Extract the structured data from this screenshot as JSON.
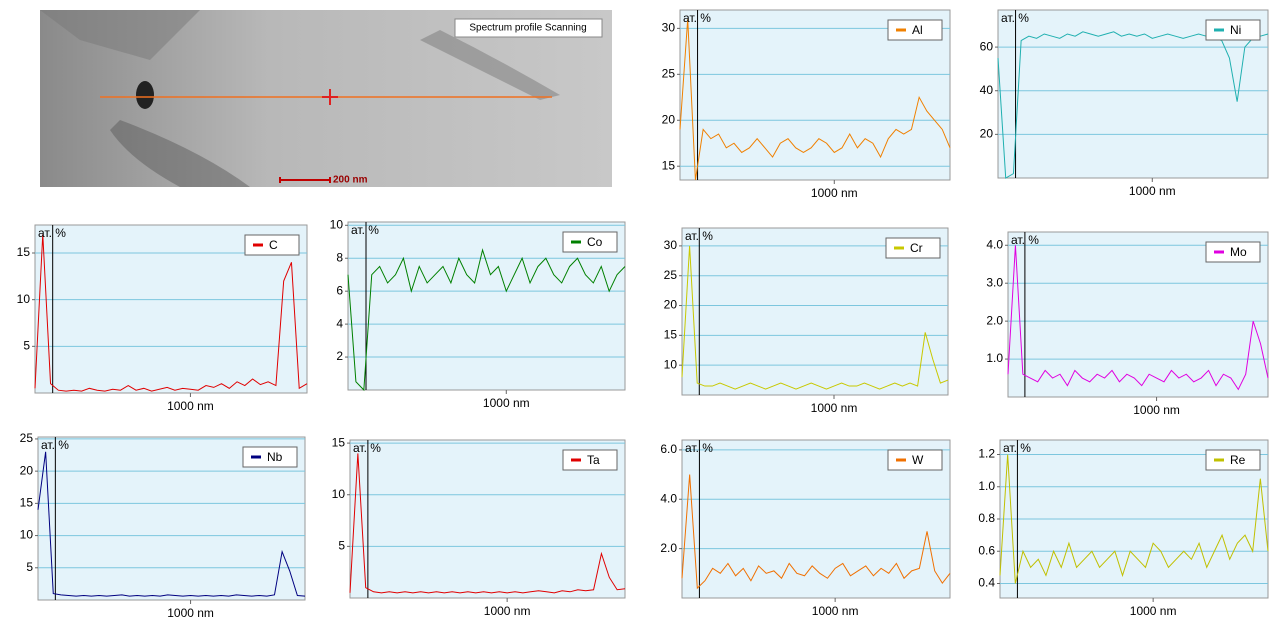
{
  "image": {
    "label": "Spectrum profile Scanning",
    "scale_bar": "200 nm"
  },
  "chart_data": [
    {
      "type": "line",
      "y_label": "ат. %",
      "x": [
        0,
        50,
        100,
        150,
        200,
        250,
        300,
        350,
        400,
        450,
        500,
        550,
        600,
        650,
        700,
        750,
        800,
        850,
        900,
        950,
        1000,
        1050,
        1100,
        1150,
        1200,
        1250,
        1300,
        1350,
        1400,
        1450,
        1500,
        1550,
        1600,
        1650,
        1700,
        1750
      ],
      "xlim": [
        0,
        1750
      ],
      "xticks": [
        {
          "value": 1000,
          "label": "1000 nm"
        }
      ],
      "ylim": [
        13.5,
        32
      ],
      "yticks": [
        15,
        20,
        25,
        30
      ],
      "grid": true,
      "series": [
        {
          "name": "Al",
          "color": "#f08000",
          "values": [
            19,
            31,
            13.5,
            19,
            18,
            18.5,
            17,
            17.5,
            16.5,
            17,
            18,
            17,
            16,
            17.5,
            18,
            17,
            16.5,
            17,
            18,
            17.5,
            16.5,
            17,
            18.5,
            17,
            18,
            17.5,
            16,
            18,
            19,
            18.5,
            19,
            22.5,
            21,
            20,
            19,
            17
          ]
        }
      ]
    },
    {
      "type": "line",
      "y_label": "ат. %",
      "x": [
        0,
        50,
        100,
        150,
        200,
        250,
        300,
        350,
        400,
        450,
        500,
        550,
        600,
        650,
        700,
        750,
        800,
        850,
        900,
        950,
        1000,
        1050,
        1100,
        1150,
        1200,
        1250,
        1300,
        1350,
        1400,
        1450,
        1500,
        1550,
        1600,
        1650,
        1700,
        1750
      ],
      "xlim": [
        0,
        1750
      ],
      "xticks": [
        {
          "value": 1000,
          "label": "1000 nm"
        }
      ],
      "ylim": [
        0,
        77
      ],
      "yticks": [
        20,
        40,
        60
      ],
      "grid": true,
      "series": [
        {
          "name": "Ni",
          "color": "#20b0b0",
          "values": [
            55,
            0,
            2,
            63,
            65,
            64,
            66,
            65,
            64,
            66,
            65,
            67,
            66,
            65,
            66,
            67,
            65,
            66,
            65,
            66,
            64,
            65,
            66,
            65,
            64,
            65,
            66,
            65,
            64,
            63,
            55,
            35,
            60,
            64,
            65,
            66
          ]
        }
      ]
    },
    {
      "type": "line",
      "y_label": "ат. %",
      "x": [
        0,
        50,
        100,
        150,
        200,
        250,
        300,
        350,
        400,
        450,
        500,
        550,
        600,
        650,
        700,
        750,
        800,
        850,
        900,
        950,
        1000,
        1050,
        1100,
        1150,
        1200,
        1250,
        1300,
        1350,
        1400,
        1450,
        1500,
        1550,
        1600,
        1650,
        1700,
        1750
      ],
      "xlim": [
        0,
        1750
      ],
      "xticks": [
        {
          "value": 1000,
          "label": "1000 nm"
        }
      ],
      "ylim": [
        0,
        18
      ],
      "yticks": [
        5,
        10,
        15
      ],
      "grid": true,
      "series": [
        {
          "name": "C",
          "color": "#e00000",
          "values": [
            0.5,
            17,
            1,
            0.3,
            0.2,
            0.3,
            0.2,
            0.5,
            0.3,
            0.2,
            0.4,
            0.3,
            0.8,
            0.3,
            0.5,
            0.2,
            0.4,
            0.6,
            0.3,
            0.5,
            0.4,
            0.3,
            0.8,
            0.6,
            1,
            0.5,
            1.2,
            0.8,
            1.5,
            0.9,
            1.2,
            0.8,
            12,
            14,
            0.5,
            1
          ]
        }
      ]
    },
    {
      "type": "line",
      "y_label": "ат. %",
      "x": [
        0,
        50,
        100,
        150,
        200,
        250,
        300,
        350,
        400,
        450,
        500,
        550,
        600,
        650,
        700,
        750,
        800,
        850,
        900,
        950,
        1000,
        1050,
        1100,
        1150,
        1200,
        1250,
        1300,
        1350,
        1400,
        1450,
        1500,
        1550,
        1600,
        1650,
        1700,
        1750
      ],
      "xlim": [
        0,
        1750
      ],
      "xticks": [
        {
          "value": 1000,
          "label": "1000 nm"
        }
      ],
      "ylim": [
        0,
        10.2
      ],
      "yticks": [
        2,
        4,
        6,
        8,
        10
      ],
      "grid": true,
      "series": [
        {
          "name": "Co",
          "color": "#008000",
          "values": [
            7,
            0.5,
            0,
            7,
            7.5,
            6.5,
            7,
            8,
            6,
            7.5,
            6.5,
            7,
            7.5,
            6.5,
            8,
            7,
            6.5,
            8.5,
            7,
            7.5,
            6,
            7,
            8,
            6.5,
            7.5,
            8,
            7,
            6.5,
            7.5,
            8,
            7,
            6.5,
            7.5,
            6,
            7,
            7.5
          ]
        }
      ]
    },
    {
      "type": "line",
      "y_label": "ат. %",
      "x": [
        0,
        50,
        100,
        150,
        200,
        250,
        300,
        350,
        400,
        450,
        500,
        550,
        600,
        650,
        700,
        750,
        800,
        850,
        900,
        950,
        1000,
        1050,
        1100,
        1150,
        1200,
        1250,
        1300,
        1350,
        1400,
        1450,
        1500,
        1550,
        1600,
        1650,
        1700,
        1750
      ],
      "xlim": [
        0,
        1750
      ],
      "xticks": [
        {
          "value": 1000,
          "label": "1000 nm"
        }
      ],
      "ylim": [
        5,
        33
      ],
      "yticks": [
        10,
        15,
        20,
        25,
        30
      ],
      "grid": true,
      "series": [
        {
          "name": "Cr",
          "color": "#c8c800",
          "values": [
            8,
            30,
            7,
            6.5,
            6.5,
            7,
            6.5,
            6,
            6.5,
            7,
            6.5,
            6,
            6.5,
            7,
            6.5,
            6,
            6.5,
            7,
            6.5,
            6,
            6.5,
            7,
            6.5,
            6.5,
            7,
            6.5,
            6,
            6.5,
            7,
            6.5,
            7,
            6.5,
            15.5,
            11,
            7,
            7.5
          ]
        }
      ]
    },
    {
      "type": "line",
      "y_label": "ат. %",
      "x": [
        0,
        50,
        100,
        150,
        200,
        250,
        300,
        350,
        400,
        450,
        500,
        550,
        600,
        650,
        700,
        750,
        800,
        850,
        900,
        950,
        1000,
        1050,
        1100,
        1150,
        1200,
        1250,
        1300,
        1350,
        1400,
        1450,
        1500,
        1550,
        1600,
        1650,
        1700,
        1750
      ],
      "xlim": [
        0,
        1750
      ],
      "xticks": [
        {
          "value": 1000,
          "label": "1000 nm"
        }
      ],
      "ylim": [
        0,
        4.35
      ],
      "yticks": [
        {
          "value": 1,
          "label": "1.0"
        },
        {
          "value": 2,
          "label": "2.0"
        },
        {
          "value": 3,
          "label": "3.0"
        },
        {
          "value": 4,
          "label": "4.0"
        }
      ],
      "grid": true,
      "series": [
        {
          "name": "Mo",
          "color": "#e000e0",
          "values": [
            0.6,
            4,
            0.6,
            0.5,
            0.4,
            0.7,
            0.5,
            0.6,
            0.3,
            0.7,
            0.5,
            0.4,
            0.6,
            0.5,
            0.7,
            0.4,
            0.6,
            0.5,
            0.3,
            0.6,
            0.5,
            0.4,
            0.7,
            0.5,
            0.6,
            0.4,
            0.5,
            0.7,
            0.3,
            0.6,
            0.5,
            0.2,
            0.6,
            2,
            1.4,
            0.5
          ]
        }
      ]
    },
    {
      "type": "line",
      "y_label": "ат. %",
      "x": [
        0,
        50,
        100,
        150,
        200,
        250,
        300,
        350,
        400,
        450,
        500,
        550,
        600,
        650,
        700,
        750,
        800,
        850,
        900,
        950,
        1000,
        1050,
        1100,
        1150,
        1200,
        1250,
        1300,
        1350,
        1400,
        1450,
        1500,
        1550,
        1600,
        1650,
        1700,
        1750
      ],
      "xlim": [
        0,
        1750
      ],
      "xticks": [
        {
          "value": 1000,
          "label": "1000 nm"
        }
      ],
      "ylim": [
        0,
        25.3
      ],
      "yticks": [
        5,
        10,
        15,
        20,
        25
      ],
      "grid": true,
      "series": [
        {
          "name": "Nb",
          "color": "#000080",
          "values": [
            14,
            23,
            1,
            0.8,
            0.7,
            0.6,
            0.7,
            0.6,
            0.7,
            0.6,
            0.7,
            0.8,
            0.6,
            0.7,
            0.6,
            0.7,
            0.6,
            0.8,
            0.7,
            0.6,
            0.7,
            0.6,
            0.7,
            0.6,
            0.7,
            0.6,
            0.8,
            0.7,
            0.6,
            0.7,
            0.6,
            0.8,
            7.5,
            4.5,
            0.7,
            0.6
          ]
        }
      ]
    },
    {
      "type": "line",
      "y_label": "ат. %",
      "x": [
        0,
        50,
        100,
        150,
        200,
        250,
        300,
        350,
        400,
        450,
        500,
        550,
        600,
        650,
        700,
        750,
        800,
        850,
        900,
        950,
        1000,
        1050,
        1100,
        1150,
        1200,
        1250,
        1300,
        1350,
        1400,
        1450,
        1500,
        1550,
        1600,
        1650,
        1700,
        1750
      ],
      "xlim": [
        0,
        1750
      ],
      "xticks": [
        {
          "value": 1000,
          "label": "1000 nm"
        }
      ],
      "ylim": [
        0,
        15.3
      ],
      "yticks": [
        5,
        10,
        15
      ],
      "grid": true,
      "series": [
        {
          "name": "Ta",
          "color": "#e00000",
          "values": [
            0.5,
            14,
            1,
            0.6,
            0.5,
            0.6,
            0.5,
            0.6,
            0.5,
            0.6,
            0.5,
            0.6,
            0.5,
            0.6,
            0.5,
            0.6,
            0.5,
            0.6,
            0.5,
            0.6,
            0.5,
            0.6,
            0.5,
            0.6,
            0.7,
            0.6,
            0.5,
            0.7,
            0.6,
            0.8,
            0.7,
            0.8,
            4.3,
            2,
            0.8,
            0.9
          ]
        }
      ]
    },
    {
      "type": "line",
      "y_label": "ат. %",
      "x": [
        0,
        50,
        100,
        150,
        200,
        250,
        300,
        350,
        400,
        450,
        500,
        550,
        600,
        650,
        700,
        750,
        800,
        850,
        900,
        950,
        1000,
        1050,
        1100,
        1150,
        1200,
        1250,
        1300,
        1350,
        1400,
        1450,
        1500,
        1550,
        1600,
        1650,
        1700,
        1750
      ],
      "xlim": [
        0,
        1750
      ],
      "xticks": [
        {
          "value": 1000,
          "label": "1000 nm"
        }
      ],
      "ylim": [
        0,
        6.4
      ],
      "yticks": [
        {
          "value": 2,
          "label": "2.0"
        },
        {
          "value": 4,
          "label": "4.0"
        },
        {
          "value": 6,
          "label": "6.0"
        }
      ],
      "grid": true,
      "series": [
        {
          "name": "W",
          "color": "#f07000",
          "values": [
            0.8,
            5,
            0.4,
            0.7,
            1.2,
            1,
            1.4,
            0.9,
            1.2,
            0.7,
            1.3,
            1,
            1.1,
            0.8,
            1.4,
            1,
            0.9,
            1.3,
            1,
            0.8,
            1.2,
            1.4,
            0.9,
            1.1,
            1.3,
            0.9,
            1.2,
            1,
            1.4,
            0.8,
            1.1,
            1.2,
            2.7,
            1.1,
            0.6,
            1
          ]
        }
      ]
    },
    {
      "type": "line",
      "y_label": "ат. %",
      "x": [
        0,
        50,
        100,
        150,
        200,
        250,
        300,
        350,
        400,
        450,
        500,
        550,
        600,
        650,
        700,
        750,
        800,
        850,
        900,
        950,
        1000,
        1050,
        1100,
        1150,
        1200,
        1250,
        1300,
        1350,
        1400,
        1450,
        1500,
        1550,
        1600,
        1650,
        1700,
        1750
      ],
      "xlim": [
        0,
        1750
      ],
      "xticks": [
        {
          "value": 1000,
          "label": "1000 nm"
        }
      ],
      "ylim": [
        0.31,
        1.29
      ],
      "yticks": [
        0.4,
        0.6,
        0.8,
        {
          "value": 1,
          "label": "1.0"
        },
        1.2
      ],
      "grid": true,
      "series": [
        {
          "name": "Re",
          "color": "#c0c000",
          "values": [
            0.45,
            1.2,
            0.4,
            0.6,
            0.5,
            0.55,
            0.45,
            0.6,
            0.5,
            0.65,
            0.5,
            0.55,
            0.6,
            0.5,
            0.55,
            0.6,
            0.45,
            0.6,
            0.55,
            0.5,
            0.65,
            0.6,
            0.5,
            0.55,
            0.6,
            0.55,
            0.65,
            0.5,
            0.6,
            0.7,
            0.55,
            0.65,
            0.7,
            0.6,
            1.05,
            0.6
          ]
        }
      ]
    }
  ]
}
